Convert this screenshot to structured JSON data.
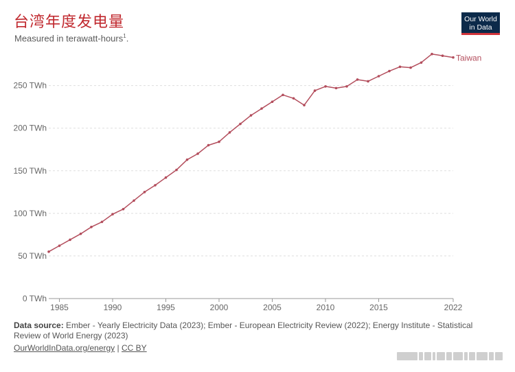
{
  "header": {
    "title": "台湾年度发电量",
    "subtitle": "Measured in terawatt-hours",
    "subtitle_note": "1",
    "logo_text": "Our World\nin Data"
  },
  "footer": {
    "source_label": "Data source:",
    "source_text": "Ember - Yearly Electricity Data (2023); Ember - European Electricity Review (2022); Energy Institute - Statistical Review of World Energy (2023)",
    "link_primary": "OurWorldInData.org/energy",
    "separator": "|",
    "link_license": "CC BY"
  },
  "colors": {
    "series": "#b34d5c",
    "title": "#c0282e",
    "logo_bg": "#0c2a4a",
    "logo_accent": "#d1343a"
  },
  "chart_data": {
    "type": "line",
    "title": "台湾年度发电量",
    "subtitle": "Measured in terawatt-hours",
    "xlabel": "",
    "ylabel": "",
    "xlim": [
      1984,
      2022
    ],
    "ylim": [
      0,
      290
    ],
    "x_ticks": [
      "1985",
      "1990",
      "1995",
      "2000",
      "2005",
      "2010",
      "2015",
      "2022"
    ],
    "y_ticks": [
      "0 TWh",
      "50 TWh",
      "100 TWh",
      "150 TWh",
      "200 TWh",
      "250 TWh"
    ],
    "y_tick_values": [
      0,
      50,
      100,
      150,
      200,
      250
    ],
    "x_tick_values": [
      1985,
      1990,
      1995,
      2000,
      2005,
      2010,
      2015,
      2022
    ],
    "grid": true,
    "legend": "end-of-line",
    "series": [
      {
        "name": "Taiwan",
        "x": [
          1984,
          1985,
          1986,
          1987,
          1988,
          1989,
          1990,
          1991,
          1992,
          1993,
          1994,
          1995,
          1996,
          1997,
          1998,
          1999,
          2000,
          2001,
          2002,
          2003,
          2004,
          2005,
          2006,
          2007,
          2008,
          2009,
          2010,
          2011,
          2012,
          2013,
          2014,
          2015,
          2016,
          2017,
          2018,
          2019,
          2020,
          2021,
          2022
        ],
        "values": [
          55,
          62,
          69,
          76,
          84,
          90,
          99,
          105,
          115,
          125,
          133,
          142,
          151,
          163,
          170,
          180,
          184,
          195,
          205,
          215,
          223,
          231,
          239,
          235,
          227,
          244,
          249,
          247,
          249,
          257,
          255,
          261,
          267,
          272,
          271,
          277,
          287,
          285,
          283
        ]
      }
    ]
  }
}
